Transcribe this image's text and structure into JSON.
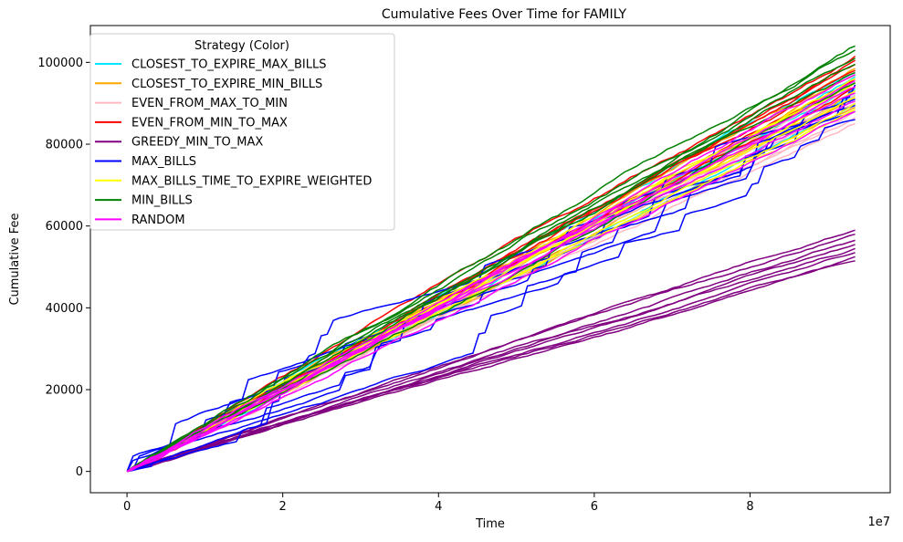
{
  "chart_data": {
    "type": "line",
    "title": "Cumulative Fees Over Time for FAMILY",
    "xlabel": "Time",
    "ylabel": "Cumulative Fee",
    "x_offset_label": "1e7",
    "x_tick_labels": [
      "0",
      "2",
      "4",
      "6",
      "8"
    ],
    "x_ticks": [
      0,
      2,
      4,
      6,
      8
    ],
    "y_tick_labels": [
      "0",
      "20000",
      "40000",
      "60000",
      "80000",
      "100000"
    ],
    "y_ticks": [
      0,
      20000,
      40000,
      60000,
      80000,
      100000
    ],
    "xlim": [
      -0.47,
      9.8
    ],
    "ylim": [
      -5200,
      109000
    ],
    "grid": false,
    "legend": {
      "title": "Strategy (Color)",
      "position": "top-left"
    },
    "series": [
      {
        "name": "CLOSEST_TO_EXPIRE_MAX_BILLS",
        "color": "#00e5ff",
        "finals": [
          90000,
          92000,
          93500,
          95000,
          96500,
          97500
        ]
      },
      {
        "name": "CLOSEST_TO_EXPIRE_MIN_BILLS",
        "color": "#ffa500",
        "finals": [
          89000,
          91500,
          93000,
          95000,
          97000,
          98500
        ]
      },
      {
        "name": "EVEN_FROM_MAX_TO_MIN",
        "color": "#ffb6c1",
        "finals": [
          85000,
          86500,
          88000,
          90000,
          92000,
          94000
        ]
      },
      {
        "name": "EVEN_FROM_MIN_TO_MAX",
        "color": "#ff0000",
        "finals": [
          94000,
          96000,
          98000,
          99500,
          100500,
          101500
        ]
      },
      {
        "name": "GREEDY_MIN_TO_MAX",
        "color": "#800080",
        "finals": [
          51500,
          52500,
          53500,
          54500,
          55500,
          56500,
          58000,
          59000
        ]
      },
      {
        "name": "MAX_BILLS",
        "color": "#0000ff",
        "finals": [
          86000,
          88000,
          89500,
          91000,
          93000,
          94500
        ]
      },
      {
        "name": "MAX_BILLS_TIME_TO_EXPIRE_WEIGHTED",
        "color": "#ffff00",
        "finals": [
          88500,
          90000,
          91500,
          93000,
          95000,
          96000
        ]
      },
      {
        "name": "MIN_BILLS",
        "color": "#008000",
        "finals": [
          95000,
          97500,
          99500,
          101000,
          103000,
          104000
        ]
      },
      {
        "name": "RANDOM",
        "color": "#ff00ff",
        "finals": [
          88000,
          90500,
          92500,
          94000,
          95500,
          97000
        ]
      }
    ],
    "x_end": 9.35
  }
}
